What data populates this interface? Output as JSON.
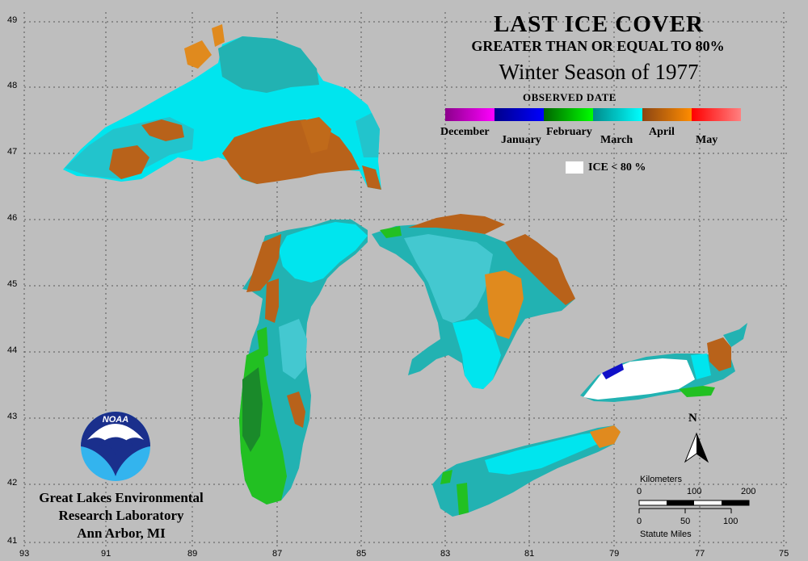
{
  "title": {
    "line1": "LAST ICE COVER",
    "line2": "GREATER THAN OR EQUAL TO 80%",
    "line3": "Winter Season of 1977"
  },
  "legend": {
    "heading": "OBSERVED DATE",
    "months": [
      {
        "label": "December",
        "color_start": "#8b008b",
        "color_end": "#ff00ff"
      },
      {
        "label": "January",
        "color_start": "#00008b",
        "color_end": "#0000ff"
      },
      {
        "label": "February",
        "color_start": "#006400",
        "color_end": "#00ff00"
      },
      {
        "label": "March",
        "color_start": "#008b8b",
        "color_end": "#00ffff"
      },
      {
        "label": "April",
        "color_start": "#8b4513",
        "color_end": "#ff8c00"
      },
      {
        "label": "May",
        "color_start": "#ff0000",
        "color_end": "#ff8080"
      }
    ],
    "ice_label": "ICE < 80 %"
  },
  "axes": {
    "latitudes": [
      "49",
      "48",
      "47",
      "46",
      "45",
      "44",
      "43",
      "42",
      "41"
    ],
    "longitudes": [
      "93",
      "91",
      "89",
      "87",
      "85",
      "83",
      "81",
      "79",
      "77",
      "75"
    ]
  },
  "scale_bar": {
    "km_title": "Kilometers",
    "km_ticks": [
      "0",
      "100",
      "200"
    ],
    "mi_ticks": [
      "0",
      "50",
      "100"
    ],
    "mi_title": "Statute Miles"
  },
  "north_label": "N",
  "logo_text": "NOAA",
  "credit": {
    "line1": "Great Lakes Environmental",
    "line2": "Research Laboratory",
    "line3": "Ann Arbor, MI"
  },
  "colors": {
    "background": "#bebebe",
    "water_cyan": "#00e5ee",
    "water_teal": "#22b2b2",
    "ice_brown": "#b8621a",
    "ice_orange": "#e08a1e",
    "ice_green": "#22c022",
    "ice_white": "#ffffff",
    "ice_blue": "#1010c8"
  }
}
